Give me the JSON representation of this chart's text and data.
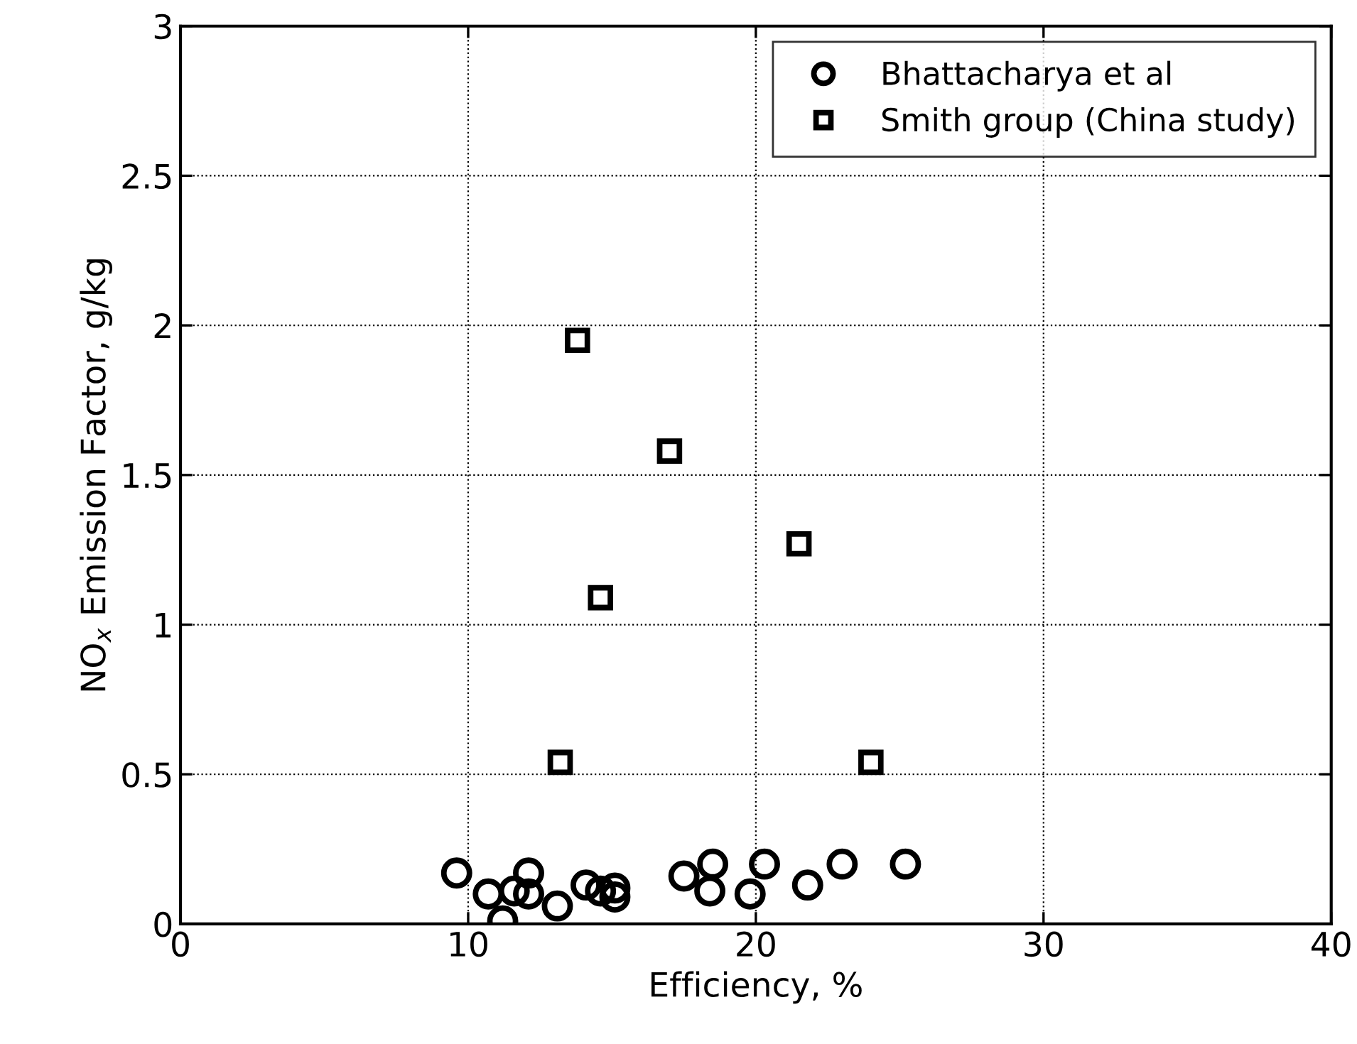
{
  "chart_data": {
    "type": "scatter",
    "xlabel": "Efficiency, %",
    "ylabel": "NO$_{x}$ Emission Factor, g/kg",
    "xlim": [
      0,
      40
    ],
    "ylim": [
      0,
      3
    ],
    "xticks": [
      0,
      10,
      20,
      30,
      40
    ],
    "yticks": [
      0,
      0.5,
      1,
      1.5,
      2,
      2.5,
      3
    ],
    "grid": true,
    "legend": "top right",
    "series": [
      {
        "name": "Bhattacharya et al",
        "color": "#000000",
        "marker": "circle",
        "x": [
          9.6,
          10.7,
          11.2,
          11.6,
          12.1,
          12.1,
          13.1,
          14.1,
          14.6,
          15.1,
          15.1,
          17.5,
          18.5,
          18.4,
          19.8,
          20.3,
          21.8,
          23.0,
          25.2
        ],
        "values": [
          0.17,
          0.1,
          0.01,
          0.11,
          0.17,
          0.1,
          0.06,
          0.13,
          0.11,
          0.12,
          0.09,
          0.16,
          0.2,
          0.11,
          0.1,
          0.2,
          0.13,
          0.2,
          0.2
        ]
      },
      {
        "name": "Smith group (China study)",
        "color": "#000000",
        "marker": "square",
        "x": [
          13.8,
          17.0,
          21.5,
          14.6,
          13.2,
          24.0
        ],
        "values": [
          1.95,
          1.58,
          1.27,
          1.09,
          0.54,
          0.54
        ]
      }
    ]
  }
}
